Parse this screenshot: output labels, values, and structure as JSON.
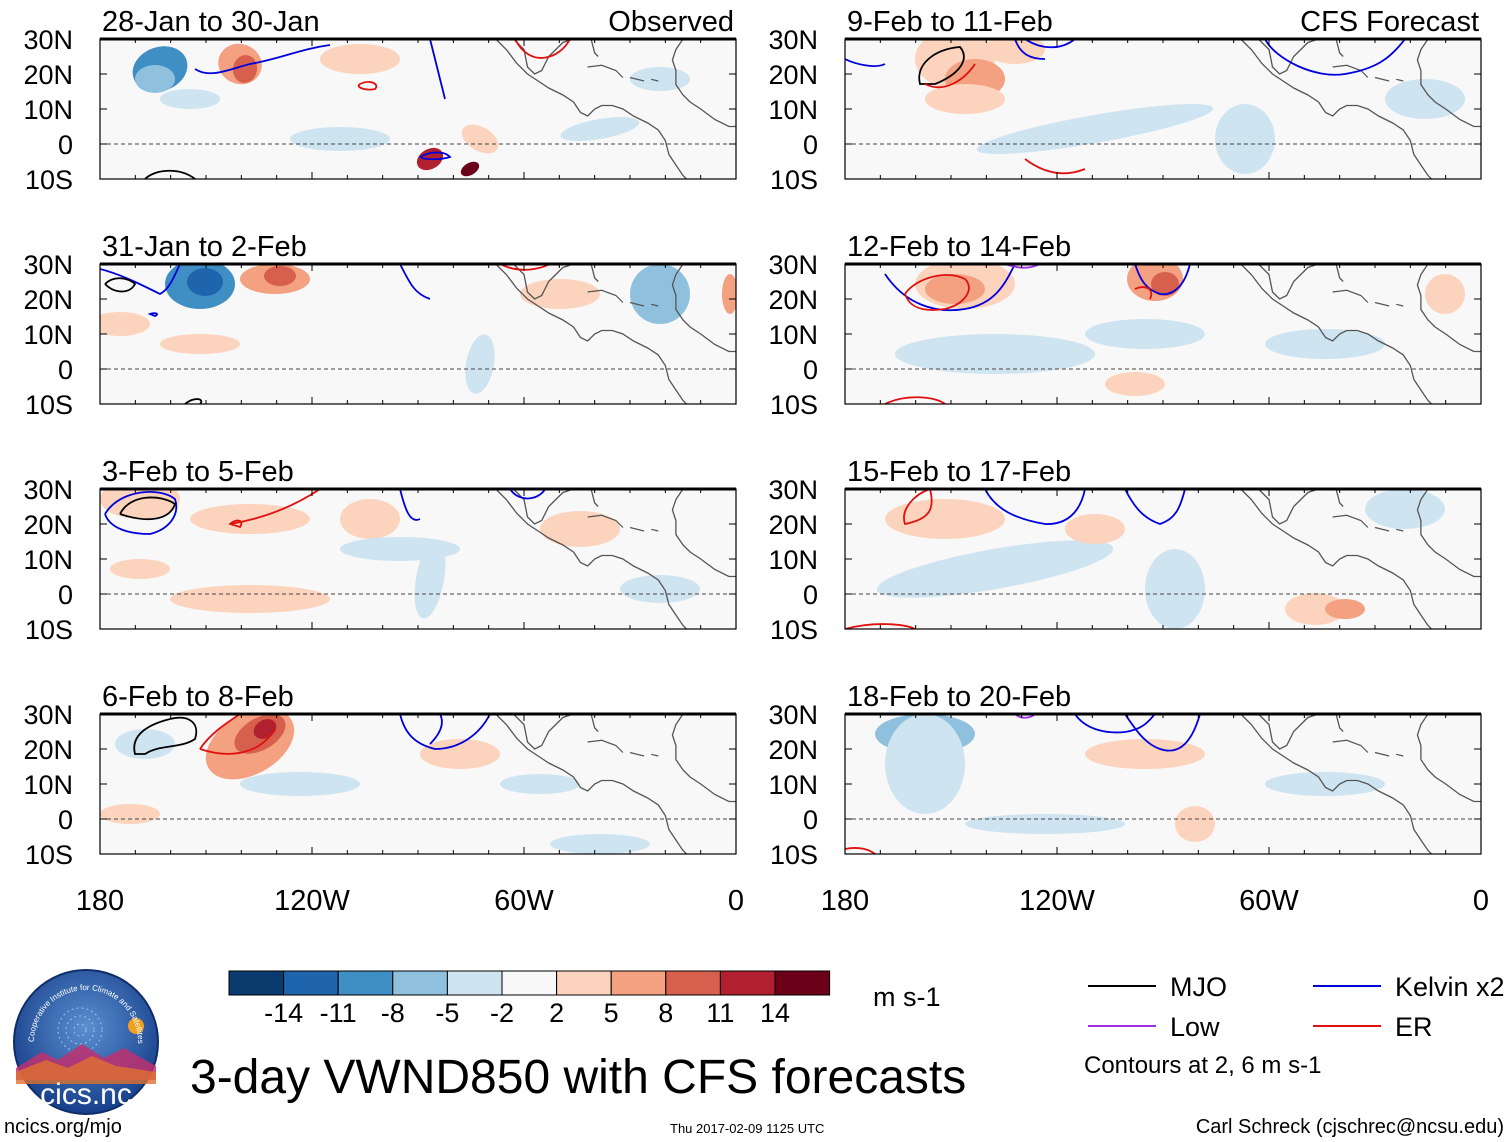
{
  "chart_data": {
    "type": "map",
    "title": "3-day VWND850 with CFS forecasts",
    "variable": "VWND850",
    "units": "m s-1",
    "left_column_label": "Observed",
    "right_column_label": "CFS Forecast",
    "longitude_ticks": [
      "180",
      "120W",
      "60W",
      "0"
    ],
    "latitude_ticks": [
      "30N",
      "20N",
      "10N",
      "0",
      "10S"
    ],
    "panels": [
      {
        "period": "28-Jan to 30-Jan",
        "type": "Observed"
      },
      {
        "period": "31-Jan to 2-Feb",
        "type": "Observed"
      },
      {
        "period": "3-Feb to 5-Feb",
        "type": "Observed"
      },
      {
        "period": "6-Feb to 8-Feb",
        "type": "Observed"
      },
      {
        "period": "9-Feb to 11-Feb",
        "type": "CFS Forecast"
      },
      {
        "period": "12-Feb to 14-Feb",
        "type": "CFS Forecast"
      },
      {
        "period": "15-Feb to 17-Feb",
        "type": "CFS Forecast"
      },
      {
        "period": "18-Feb to 20-Feb",
        "type": "CFS Forecast"
      }
    ],
    "colorbar": {
      "levels": [
        "-14",
        "-11",
        "-8",
        "-5",
        "-2",
        "2",
        "5",
        "8",
        "11",
        "14"
      ],
      "colors": [
        "#0a3a6e",
        "#1f65ad",
        "#3f8ec4",
        "#8fc1de",
        "#cfe4f1",
        "#f8f8f8",
        "#fcd3bc",
        "#f3a181",
        "#d6604d",
        "#b0202e",
        "#6b0119"
      ],
      "units": "m s-1"
    },
    "legend": [
      {
        "label": "MJO",
        "color": "#000000"
      },
      {
        "label": "Kelvin x2",
        "color": "#0000dd"
      },
      {
        "label": "Low",
        "color": "#a030e0"
      },
      {
        "label": "ER",
        "color": "#e01010"
      }
    ],
    "contour_note": "Contours at 2, 6 m s-1"
  },
  "footer": {
    "left": "ncics.org/mjo",
    "center": "Thu 2017-02-09 1125 UTC",
    "right": "Carl Schreck (cjschrec@ncsu.edu)"
  },
  "logo": {
    "text": "cics.nc",
    "arc_text": "Cooperative Institute for Climate and Satellites"
  }
}
